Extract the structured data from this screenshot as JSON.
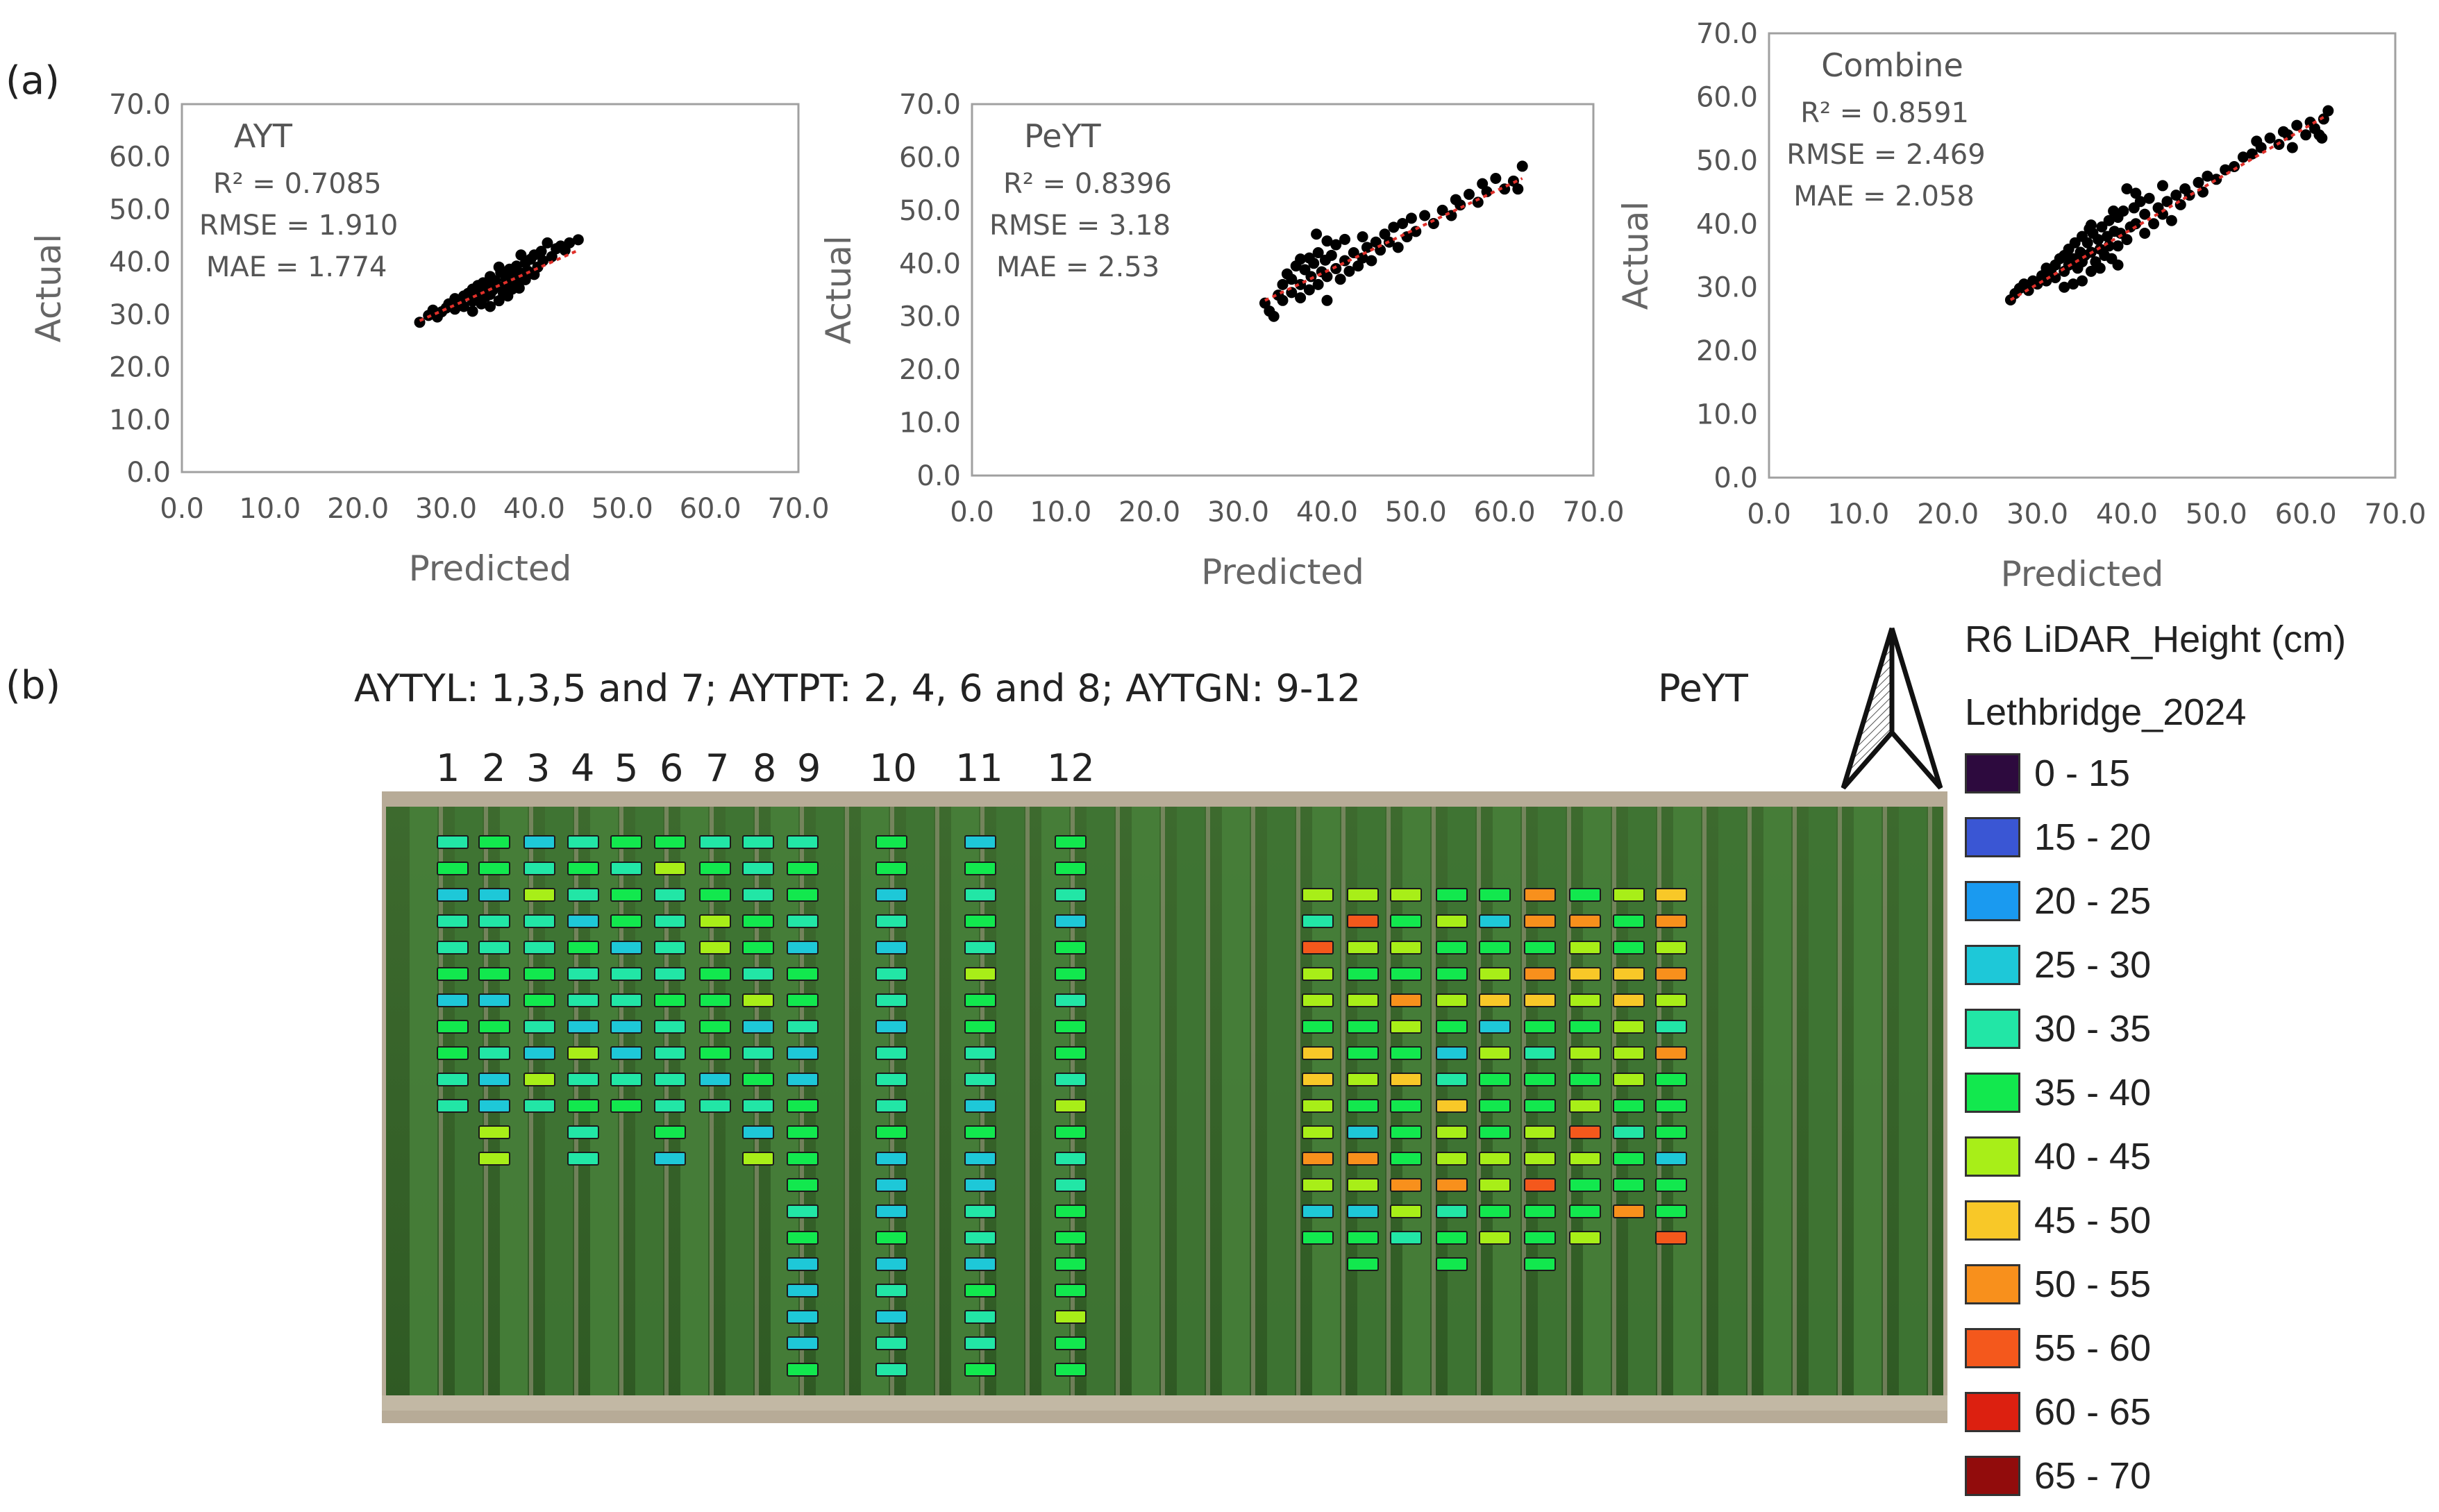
{
  "panel_labels": {
    "a": "(a)",
    "b": "(b)"
  },
  "chart_data": [
    {
      "type": "scatter",
      "annotation_title": "AYT",
      "stats": [
        "R² = 0.7085",
        "RMSE = 1.910",
        "MAE = 1.774"
      ],
      "xlabel": "Predicted",
      "ylabel": "Actual",
      "xlim": [
        0,
        70
      ],
      "ylim": [
        0,
        70
      ],
      "xticks": [
        "0.0",
        "10.0",
        "20.0",
        "30.0",
        "40.0",
        "50.0",
        "60.0",
        "70.0"
      ],
      "yticks": [
        "0.0",
        "10.0",
        "20.0",
        "30.0",
        "40.0",
        "50.0",
        "60.0",
        "70.0"
      ],
      "grid": false,
      "trendline": {
        "x": [
          27,
          45
        ],
        "y": [
          28.8,
          42.2
        ],
        "color": "#e0302a",
        "style": "dotted"
      },
      "point_color": "#000000",
      "points": [
        [
          27,
          28.5
        ],
        [
          28,
          29.8
        ],
        [
          28.5,
          30.8
        ],
        [
          29,
          29.5
        ],
        [
          29.5,
          30.5
        ],
        [
          30,
          31.2
        ],
        [
          30.3,
          32
        ],
        [
          31,
          31
        ],
        [
          31,
          33
        ],
        [
          31.5,
          32.2
        ],
        [
          32,
          33.5
        ],
        [
          32,
          31.5
        ],
        [
          32.5,
          34
        ],
        [
          33,
          32.5
        ],
        [
          33,
          34.8
        ],
        [
          33.5,
          33.2
        ],
        [
          33.6,
          35.5
        ],
        [
          34,
          32
        ],
        [
          34,
          34.3
        ],
        [
          34.2,
          36
        ],
        [
          34.5,
          33.4
        ],
        [
          34.8,
          35.2
        ],
        [
          35,
          31.5
        ],
        [
          35,
          33.8
        ],
        [
          35,
          37.2
        ],
        [
          35.3,
          34.6
        ],
        [
          35.6,
          36.4
        ],
        [
          36,
          32.6
        ],
        [
          36,
          35.3
        ],
        [
          36.2,
          38
        ],
        [
          36.5,
          34
        ],
        [
          36.8,
          36.8
        ],
        [
          37,
          33.5
        ],
        [
          37,
          35.8
        ],
        [
          37.2,
          38.6
        ],
        [
          37.5,
          34.8
        ],
        [
          37.8,
          37.4
        ],
        [
          38,
          36.2
        ],
        [
          38,
          39.2
        ],
        [
          38.3,
          35
        ],
        [
          38.6,
          37.8
        ],
        [
          39,
          36.6
        ],
        [
          39,
          39.8
        ],
        [
          39.3,
          38.2
        ],
        [
          39.6,
          40.5
        ],
        [
          40,
          37.6
        ],
        [
          40,
          41.3
        ],
        [
          40.4,
          39
        ],
        [
          40.8,
          42
        ],
        [
          41,
          40.2
        ],
        [
          41.5,
          43.6
        ],
        [
          42,
          41
        ],
        [
          42.5,
          42.5
        ],
        [
          43,
          43
        ],
        [
          43.5,
          42.2
        ],
        [
          44,
          43.6
        ],
        [
          45,
          44.2
        ],
        [
          33,
          30.6
        ],
        [
          36,
          39
        ],
        [
          38.5,
          41.3
        ]
      ]
    },
    {
      "type": "scatter",
      "annotation_title": "PeYT",
      "stats": [
        "R² = 0.8396",
        "RMSE = 3.18",
        "MAE = 2.53"
      ],
      "xlabel": "Predicted",
      "ylabel": "Actual",
      "xlim": [
        0,
        70
      ],
      "ylim": [
        0,
        70
      ],
      "xticks": [
        "0.0",
        "10.0",
        "20.0",
        "30.0",
        "40.0",
        "50.0",
        "60.0",
        "70.0"
      ],
      "yticks": [
        "0.0",
        "10.0",
        "20.0",
        "30.0",
        "40.0",
        "50.0",
        "60.0",
        "70.0"
      ],
      "grid": false,
      "trendline": {
        "x": [
          33,
          62
        ],
        "y": [
          33,
          56
        ],
        "color": "#e0302a",
        "style": "dotted"
      },
      "point_color": "#000000",
      "points": [
        [
          33,
          32.5
        ],
        [
          33.5,
          31
        ],
        [
          34,
          30
        ],
        [
          34.5,
          34
        ],
        [
          35,
          33
        ],
        [
          35,
          36
        ],
        [
          35.5,
          38
        ],
        [
          36,
          34.5
        ],
        [
          36,
          37
        ],
        [
          36.5,
          39.5
        ],
        [
          37,
          33.5
        ],
        [
          37,
          36
        ],
        [
          37.5,
          38.8
        ],
        [
          38,
          35
        ],
        [
          38,
          41
        ],
        [
          38.2,
          37.5
        ],
        [
          38.5,
          40
        ],
        [
          38.8,
          45.5
        ],
        [
          39,
          36
        ],
        [
          39,
          42
        ],
        [
          39.4,
          38.4
        ],
        [
          39.8,
          40.6
        ],
        [
          40,
          33
        ],
        [
          40,
          37.5
        ],
        [
          40.5,
          41.5
        ],
        [
          41,
          39
        ],
        [
          41,
          43.5
        ],
        [
          41.5,
          37
        ],
        [
          42,
          40.5
        ],
        [
          42,
          44.5
        ],
        [
          42.5,
          38.5
        ],
        [
          43,
          42
        ],
        [
          43.5,
          39.5
        ],
        [
          44,
          41
        ],
        [
          44,
          45
        ],
        [
          44.5,
          43
        ],
        [
          45,
          40.5
        ],
        [
          45.5,
          44
        ],
        [
          46,
          42.5
        ],
        [
          46.5,
          45.5
        ],
        [
          47,
          44
        ],
        [
          47.5,
          46.8
        ],
        [
          48,
          43
        ],
        [
          48.5,
          47.5
        ],
        [
          49,
          45
        ],
        [
          49.5,
          48.5
        ],
        [
          50,
          46
        ],
        [
          51,
          49
        ],
        [
          52,
          47.5
        ],
        [
          53,
          50
        ],
        [
          54,
          49
        ],
        [
          54.5,
          52
        ],
        [
          55,
          51
        ],
        [
          56,
          53
        ],
        [
          57,
          51.5
        ],
        [
          57.5,
          55
        ],
        [
          58,
          53.5
        ],
        [
          59,
          56
        ],
        [
          60,
          54
        ],
        [
          61,
          55.5
        ],
        [
          62,
          58.3
        ],
        [
          61.5,
          54
        ],
        [
          40,
          44.2
        ],
        [
          37,
          40.8
        ]
      ]
    },
    {
      "type": "scatter",
      "annotation_title": "Combine",
      "stats": [
        "R² = 0.8591",
        "RMSE = 2.469",
        "MAE = 2.058"
      ],
      "xlabel": "Predicted",
      "ylabel": "Actual",
      "xlim": [
        0,
        70
      ],
      "ylim": [
        0,
        70
      ],
      "xticks": [
        "0.0",
        "10.0",
        "20.0",
        "30.0",
        "40.0",
        "50.0",
        "60.0",
        "70.0"
      ],
      "yticks": [
        "0.0",
        "10.0",
        "20.0",
        "30.0",
        "40.0",
        "50.0",
        "60.0",
        "70.0"
      ],
      "grid": false,
      "trendline": {
        "x": [
          27,
          62
        ],
        "y": [
          28,
          56.8
        ],
        "color": "#e0302a",
        "style": "dotted"
      },
      "point_color": "#000000",
      "points": [
        [
          27,
          28
        ],
        [
          27.5,
          29
        ],
        [
          28,
          29.8
        ],
        [
          28.5,
          30.5
        ],
        [
          29,
          29.5
        ],
        [
          29.5,
          31
        ],
        [
          30,
          30.5
        ],
        [
          30.5,
          31.8
        ],
        [
          31,
          31
        ],
        [
          31,
          33
        ],
        [
          31.5,
          32.5
        ],
        [
          32,
          33.5
        ],
        [
          32,
          31.5
        ],
        [
          32.5,
          34.5
        ],
        [
          33,
          32.5
        ],
        [
          33,
          35
        ],
        [
          33.5,
          33.5
        ],
        [
          33.5,
          36
        ],
        [
          34,
          30.5
        ],
        [
          34,
          34.5
        ],
        [
          34.2,
          37
        ],
        [
          34.5,
          33
        ],
        [
          34.8,
          35.5
        ],
        [
          35,
          31
        ],
        [
          35,
          34
        ],
        [
          35,
          38
        ],
        [
          35.3,
          35
        ],
        [
          35.6,
          37
        ],
        [
          35.8,
          39.2
        ],
        [
          36,
          32.5
        ],
        [
          36,
          35.5
        ],
        [
          36.2,
          38.5
        ],
        [
          36.5,
          34
        ],
        [
          36.8,
          37.5
        ],
        [
          37,
          33
        ],
        [
          37,
          36
        ],
        [
          37.2,
          39.5
        ],
        [
          37.5,
          35
        ],
        [
          37.8,
          38
        ],
        [
          38,
          36.5
        ],
        [
          38,
          40.5
        ],
        [
          38.3,
          34.5
        ],
        [
          38.6,
          38.8
        ],
        [
          39,
          36.5
        ],
        [
          39,
          41
        ],
        [
          39.3,
          38.5
        ],
        [
          39.6,
          42
        ],
        [
          40,
          37.5
        ],
        [
          40,
          45.5
        ],
        [
          40.4,
          39.5
        ],
        [
          40.8,
          42.5
        ],
        [
          41,
          40
        ],
        [
          41.5,
          43.5
        ],
        [
          42,
          38.5
        ],
        [
          42,
          41.5
        ],
        [
          42.5,
          44
        ],
        [
          43,
          40
        ],
        [
          43.5,
          42.5
        ],
        [
          44,
          41.5
        ],
        [
          44.5,
          43.5
        ],
        [
          45,
          40.5
        ],
        [
          45.5,
          44.5
        ],
        [
          46,
          43
        ],
        [
          46.5,
          45.5
        ],
        [
          47,
          44.5
        ],
        [
          48,
          46.5
        ],
        [
          48.5,
          45
        ],
        [
          49,
          47.5
        ],
        [
          50,
          47
        ],
        [
          51,
          48.5
        ],
        [
          52,
          49
        ],
        [
          53,
          50.5
        ],
        [
          54,
          51
        ],
        [
          54.5,
          53
        ],
        [
          55,
          52
        ],
        [
          56,
          53.5
        ],
        [
          57,
          52.5
        ],
        [
          57.5,
          54.5
        ],
        [
          58,
          54
        ],
        [
          58.5,
          52
        ],
        [
          59,
          55.5
        ],
        [
          60,
          54
        ],
        [
          60.5,
          56
        ],
        [
          61,
          55
        ],
        [
          61.5,
          54
        ],
        [
          62,
          56.5
        ],
        [
          62.5,
          57.8
        ],
        [
          61.8,
          53.5
        ],
        [
          33,
          30
        ],
        [
          36,
          39.8
        ],
        [
          38.5,
          42
        ],
        [
          41,
          44.8
        ],
        [
          44,
          46
        ],
        [
          39,
          33.5
        ]
      ]
    }
  ],
  "map": {
    "caption": "AYTYL: 1,3,5 and 7; AYTPT: 2, 4, 6 and 8; AYTGN: 9-12",
    "right_label": "PeYT",
    "column_numbers": [
      "1",
      "2",
      "3",
      "4",
      "5",
      "6",
      "7",
      "8",
      "9",
      "10",
      "11",
      "12"
    ],
    "north_arrow_icon": "north-arrow-icon"
  },
  "legend": {
    "title_line1": "R6 LiDAR_Height (cm)",
    "title_line2": "Lethbridge_2024",
    "classes": [
      {
        "label": "0 - 15",
        "color": "#2d0a3e"
      },
      {
        "label": "15 - 20",
        "color": "#3a56d4"
      },
      {
        "label": "20 - 25",
        "color": "#1a9af0"
      },
      {
        "label": "25 - 30",
        "color": "#1ec8d8"
      },
      {
        "label": "30 - 35",
        "color": "#22e6a6"
      },
      {
        "label": "35 - 40",
        "color": "#12e84e"
      },
      {
        "label": "40 - 45",
        "color": "#a8ee18"
      },
      {
        "label": "45 - 50",
        "color": "#f8c828"
      },
      {
        "label": "50 - 55",
        "color": "#f8901c"
      },
      {
        "label": "55 - 60",
        "color": "#f4581c"
      },
      {
        "label": "60 - 65",
        "color": "#dc2010"
      },
      {
        "label": "65 - 70",
        "color": "#920c0c"
      }
    ]
  }
}
